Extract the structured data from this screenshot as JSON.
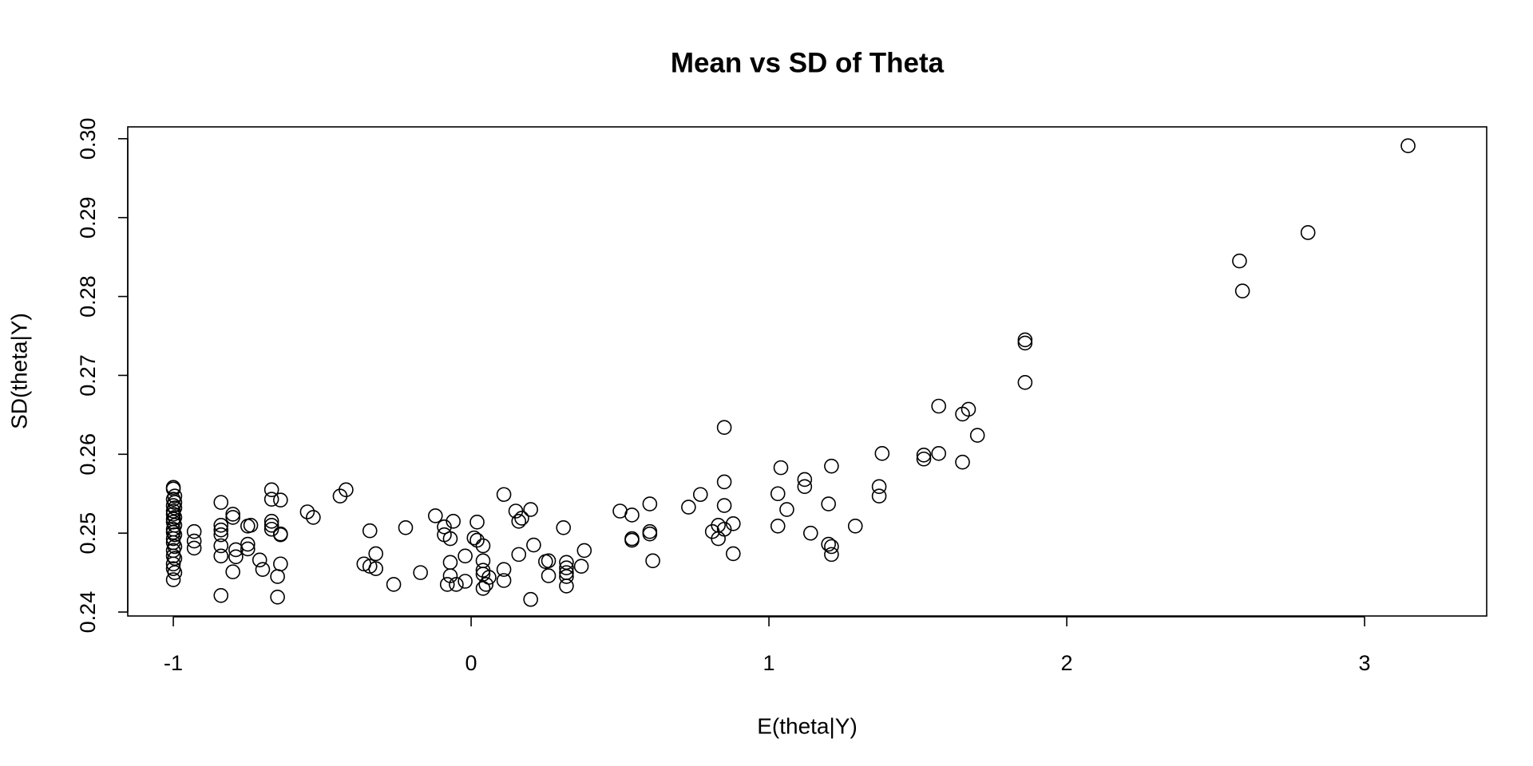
{
  "chart_data": {
    "type": "scatter",
    "title": "Mean vs SD of Theta",
    "x_label": "E(theta|Y)",
    "y_label": "SD(theta|Y)",
    "color": "#000000",
    "marker": "open-circle",
    "xlim": [
      -1.153,
      3.41
    ],
    "ylim": [
      0.2395,
      0.3015
    ],
    "xticks": [
      -1,
      0,
      1,
      2,
      3
    ],
    "yticks": [
      0.24,
      0.25,
      0.26,
      0.27,
      0.28,
      0.29,
      {
        "value": 0.3,
        "label": "0.30"
      }
    ],
    "x": [
      -1,
      -1,
      -0.995,
      -1,
      -0.995,
      -1,
      -0.995,
      -1,
      -1,
      -0.995,
      -1,
      -1,
      -0.995,
      -1,
      -1,
      -0.995,
      -1,
      -1,
      -0.995,
      -1,
      -1,
      -0.995,
      -1,
      -1,
      -0.995,
      -1,
      -0.93,
      -0.93,
      -0.93,
      -0.84,
      -0.84,
      -0.84,
      -0.84,
      -0.84,
      -0.84,
      -0.84,
      -0.8,
      -0.8,
      -0.79,
      -0.79,
      -0.8,
      -0.75,
      -0.74,
      -0.75,
      -0.75,
      -0.71,
      -0.7,
      -0.67,
      -0.67,
      -0.67,
      -0.67,
      -0.67,
      -0.64,
      -0.64,
      -0.64,
      -0.64,
      -0.65,
      -0.65,
      -0.55,
      -0.53,
      -0.44,
      -0.42,
      -0.36,
      -0.34,
      -0.34,
      -0.32,
      -0.32,
      -0.26,
      -0.22,
      -0.17,
      -0.12,
      -0.09,
      -0.09,
      -0.07,
      -0.06,
      -0.07,
      -0.07,
      -0.08,
      -0.05,
      -0.02,
      -0.02,
      0.01,
      0.02,
      0.02,
      0.04,
      0.04,
      0.04,
      0.04,
      0.04,
      0.06,
      0.05,
      0.11,
      0.11,
      0.11,
      0.15,
      0.16,
      0.17,
      0.16,
      0.2,
      0.21,
      0.2,
      0.25,
      0.26,
      0.26,
      0.31,
      0.32,
      0.32,
      0.32,
      0.32,
      0.32,
      0.37,
      0.38,
      0.5,
      0.54,
      0.54,
      0.54,
      0.6,
      0.6,
      0.6,
      0.61,
      0.73,
      0.77,
      0.81,
      0.83,
      0.83,
      0.85,
      0.85,
      0.85,
      0.85,
      0.88,
      0.88,
      1.03,
      1.03,
      1.04,
      1.06,
      1.12,
      1.12,
      1.14,
      1.2,
      1.21,
      1.2,
      1.21,
      1.21,
      1.29,
      1.37,
      1.37,
      1.38,
      1.52,
      1.52,
      1.57,
      1.57,
      1.65,
      1.65,
      1.67,
      1.7,
      1.86,
      1.86,
      1.86,
      2.58,
      2.59,
      2.81,
      3.146
    ],
    "values": [
      0.2558,
      0.2556,
      0.2547,
      0.2543,
      0.2539,
      0.2535,
      0.2532,
      0.2528,
      0.2524,
      0.252,
      0.2518,
      0.2514,
      0.251,
      0.2505,
      0.2501,
      0.2498,
      0.2493,
      0.2488,
      0.2483,
      0.2478,
      0.2471,
      0.2468,
      0.2461,
      0.2455,
      0.245,
      0.2441,
      0.2502,
      0.249,
      0.2481,
      0.2539,
      0.2504,
      0.251,
      0.2498,
      0.2484,
      0.2471,
      0.2421,
      0.2524,
      0.252,
      0.2479,
      0.247,
      0.2451,
      0.2509,
      0.251,
      0.2486,
      0.248,
      0.2466,
      0.2454,
      0.2555,
      0.2543,
      0.2515,
      0.251,
      0.2505,
      0.2542,
      0.2499,
      0.2498,
      0.2461,
      0.2445,
      0.2419,
      0.2527,
      0.252,
      0.2547,
      0.2555,
      0.2461,
      0.2458,
      0.2503,
      0.2474,
      0.2455,
      0.2435,
      0.2507,
      0.245,
      0.2522,
      0.2508,
      0.2498,
      0.2493,
      0.2515,
      0.2463,
      0.2446,
      0.2435,
      0.2435,
      0.2471,
      0.2439,
      0.2494,
      0.2514,
      0.2491,
      0.2484,
      0.2465,
      0.2453,
      0.2448,
      0.243,
      0.2444,
      0.2435,
      0.2549,
      0.2454,
      0.244,
      0.2528,
      0.2515,
      0.2519,
      0.2473,
      0.253,
      0.2485,
      0.2416,
      0.2464,
      0.2465,
      0.2446,
      0.2507,
      0.2463,
      0.2456,
      0.245,
      0.2445,
      0.2433,
      0.2458,
      0.2478,
      0.2528,
      0.2523,
      0.2493,
      0.2491,
      0.2537,
      0.2502,
      0.2499,
      0.2465,
      0.2533,
      0.2549,
      0.2502,
      0.251,
      0.2493,
      0.2535,
      0.2565,
      0.2634,
      0.2505,
      0.2512,
      0.2474,
      0.255,
      0.2509,
      0.2583,
      0.253,
      0.2559,
      0.2568,
      0.25,
      0.2537,
      0.2585,
      0.2486,
      0.2483,
      0.2473,
      0.2509,
      0.2559,
      0.2547,
      0.2601,
      0.2599,
      0.2594,
      0.2601,
      0.2661,
      0.259,
      0.2651,
      0.2657,
      0.2624,
      0.2691,
      0.2745,
      0.2741,
      0.2845,
      0.2807,
      0.2881,
      0.2991
    ]
  }
}
